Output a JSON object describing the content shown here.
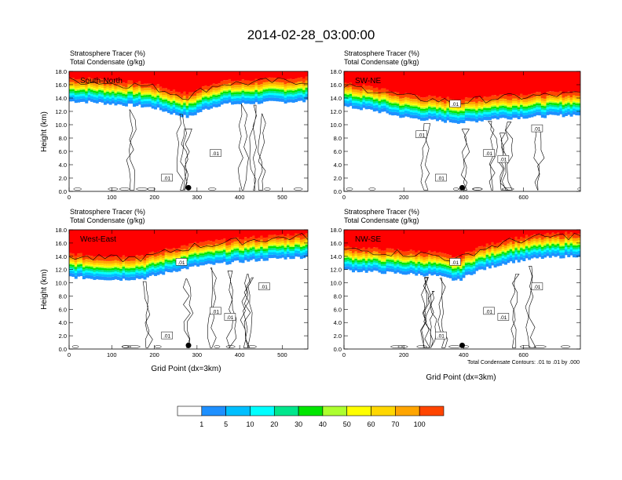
{
  "figure": {
    "title": "2014-02-28_03:00:00",
    "footnote": "Total Condensate Contours: .01 to .01 by .000"
  },
  "colorbar": {
    "labels": [
      "1",
      "5",
      "10",
      "20",
      "30",
      "40",
      "50",
      "60",
      "70",
      "100"
    ],
    "colors": [
      "#ffffff",
      "#1e90ff",
      "#00bfff",
      "#00ffff",
      "#00e68c",
      "#00e600",
      "#adff2f",
      "#ffff00",
      "#ffd700",
      "#ffa500",
      "#ff4500",
      "#ff0000"
    ]
  },
  "chart_data": [
    {
      "type": "heatmap",
      "panel_label": "South-North",
      "left_title_1": "Stratosphere Tracer   (%)",
      "left_title_2": "Total Condensate   (g/kg)",
      "ylabel": "Height (km)",
      "xlabel": "",
      "xlim": [
        0,
        560
      ],
      "ylim": [
        0,
        18
      ],
      "xticks": [
        "0",
        "100",
        "200",
        "300",
        "400",
        "500"
      ],
      "yticks": [
        "0.0",
        "2.0",
        "4.0",
        "6.0",
        "8.0",
        "10.0",
        "12.0",
        "14.0",
        "16.0",
        "18.0"
      ],
      "contour_labels": [
        ".01",
        ".01"
      ],
      "marker_x": 280,
      "tracer_base_profile_km": [
        [
          0,
          14.4
        ],
        [
          50,
          14.3
        ],
        [
          100,
          14.0
        ],
        [
          150,
          13.8
        ],
        [
          200,
          13.4
        ],
        [
          240,
          12.6
        ],
        [
          280,
          12.0
        ],
        [
          320,
          13.2
        ],
        [
          360,
          14.0
        ],
        [
          400,
          14.0
        ],
        [
          450,
          14.2
        ],
        [
          500,
          14.3
        ],
        [
          560,
          14.4
        ]
      ]
    },
    {
      "type": "heatmap",
      "panel_label": "SW-NE",
      "left_title_1": "Stratosphere Tracer   (%)",
      "left_title_2": "Total Condensate   (g/kg)",
      "ylabel": "",
      "xlabel": "",
      "xlim": [
        0,
        790
      ],
      "ylim": [
        0,
        18
      ],
      "xticks": [
        "0",
        "200",
        "400",
        "600"
      ],
      "yticks": [
        "0.0",
        "2.0",
        "4.0",
        "6.0",
        "8.0",
        "10.0",
        "12.0",
        "14.0",
        "16.0",
        "18.0"
      ],
      "contour_labels": [
        ".01",
        ".01",
        ".01",
        ".01",
        ".01",
        ".01"
      ],
      "marker_x": 395,
      "tracer_base_profile_km": [
        [
          0,
          13.6
        ],
        [
          100,
          13.0
        ],
        [
          200,
          12.0
        ],
        [
          300,
          11.5
        ],
        [
          400,
          11.2
        ],
        [
          500,
          11.8
        ],
        [
          600,
          12.0
        ],
        [
          700,
          12.2
        ],
        [
          790,
          12.4
        ]
      ]
    },
    {
      "type": "heatmap",
      "panel_label": "West-East",
      "left_title_1": "Stratosphere Tracer   (%)",
      "left_title_2": "Total Condensate   (g/kg)",
      "ylabel": "Height (km)",
      "xlabel": "Grid Point (dx=3km)",
      "xlim": [
        0,
        560
      ],
      "ylim": [
        0,
        18
      ],
      "xticks": [
        "0",
        "100",
        "200",
        "300",
        "400",
        "500"
      ],
      "yticks": [
        "0.0",
        "2.0",
        "4.0",
        "6.0",
        "8.0",
        "10.0",
        "12.0",
        "14.0",
        "16.0",
        "18.0"
      ],
      "contour_labels": [
        ".01",
        ".01",
        ".01",
        ".01",
        ".01"
      ],
      "marker_x": 280,
      "tracer_base_profile_km": [
        [
          0,
          11.8
        ],
        [
          60,
          11.5
        ],
        [
          120,
          11.4
        ],
        [
          180,
          11.6
        ],
        [
          240,
          12.6
        ],
        [
          300,
          13.4
        ],
        [
          360,
          13.8
        ],
        [
          420,
          14.2
        ],
        [
          500,
          14.6
        ],
        [
          560,
          14.8
        ]
      ]
    },
    {
      "type": "heatmap",
      "panel_label": "NW-SE",
      "left_title_1": "Stratosphere Tracer   (%)",
      "left_title_2": "Total Condensate   (g/kg)",
      "ylabel": "",
      "xlabel": "Grid Point (dx=3km)",
      "xlim": [
        0,
        790
      ],
      "ylim": [
        0,
        18
      ],
      "xticks": [
        "0",
        "200",
        "400",
        "600"
      ],
      "yticks": [
        "0.0",
        "2.0",
        "4.0",
        "6.0",
        "8.0",
        "10.0",
        "12.0",
        "14.0",
        "16.0",
        "18.0"
      ],
      "contour_labels": [
        ".01",
        ".01",
        ".01",
        ".01",
        ".01"
      ],
      "marker_x": 395,
      "tracer_base_profile_km": [
        [
          0,
          12.8
        ],
        [
          150,
          12.4
        ],
        [
          300,
          12.0
        ],
        [
          380,
          11.2
        ],
        [
          440,
          12.6
        ],
        [
          550,
          14.0
        ],
        [
          650,
          14.6
        ],
        [
          790,
          15.0
        ]
      ]
    }
  ]
}
